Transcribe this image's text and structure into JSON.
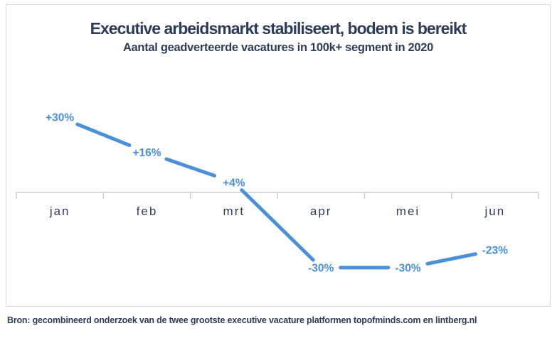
{
  "colors": {
    "navy": "#2d3d59",
    "blue": "#4a90d9",
    "axisGray": "#cccccc",
    "frameGray": "#d9d9d9",
    "background": "#ffffff"
  },
  "source_note": "Bron: gecombineerd onderzoek van de twee grootste executive vacature platformen topofminds.com en lintberg.nl",
  "chart_data": {
    "type": "line",
    "title": "Executive arbeidsmarkt stabiliseert, bodem is bereikt",
    "subtitle": "Aantal geadverteerde vacatures in 100k+ segment in 2020",
    "categories": [
      "jan",
      "feb",
      "mrt",
      "apr",
      "mei",
      "jun"
    ],
    "values": [
      30,
      16,
      4,
      -30,
      -30,
      -23
    ],
    "point_labels": [
      "+30%",
      "+16%",
      "+4%",
      "-30%",
      "-30%",
      "-23%"
    ],
    "unit": "%",
    "baseline": 0,
    "ylim": [
      -40,
      40
    ],
    "grid": false,
    "legend": false,
    "y_axis_shown": false,
    "line_color": "#4a90d9",
    "label_color": "#4a90d9",
    "axis_color": "#cccccc",
    "text_color": "#2d3d59"
  }
}
